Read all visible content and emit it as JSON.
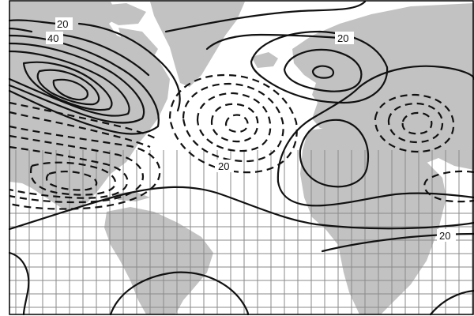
{
  "map": {
    "contour_labels": [
      "20",
      "40",
      "20",
      "20",
      "20"
    ],
    "colors": {
      "land": "#c2c2c2",
      "ocean": "#ffffff",
      "contour": "#111111",
      "grid": "#8a8a8a"
    }
  }
}
